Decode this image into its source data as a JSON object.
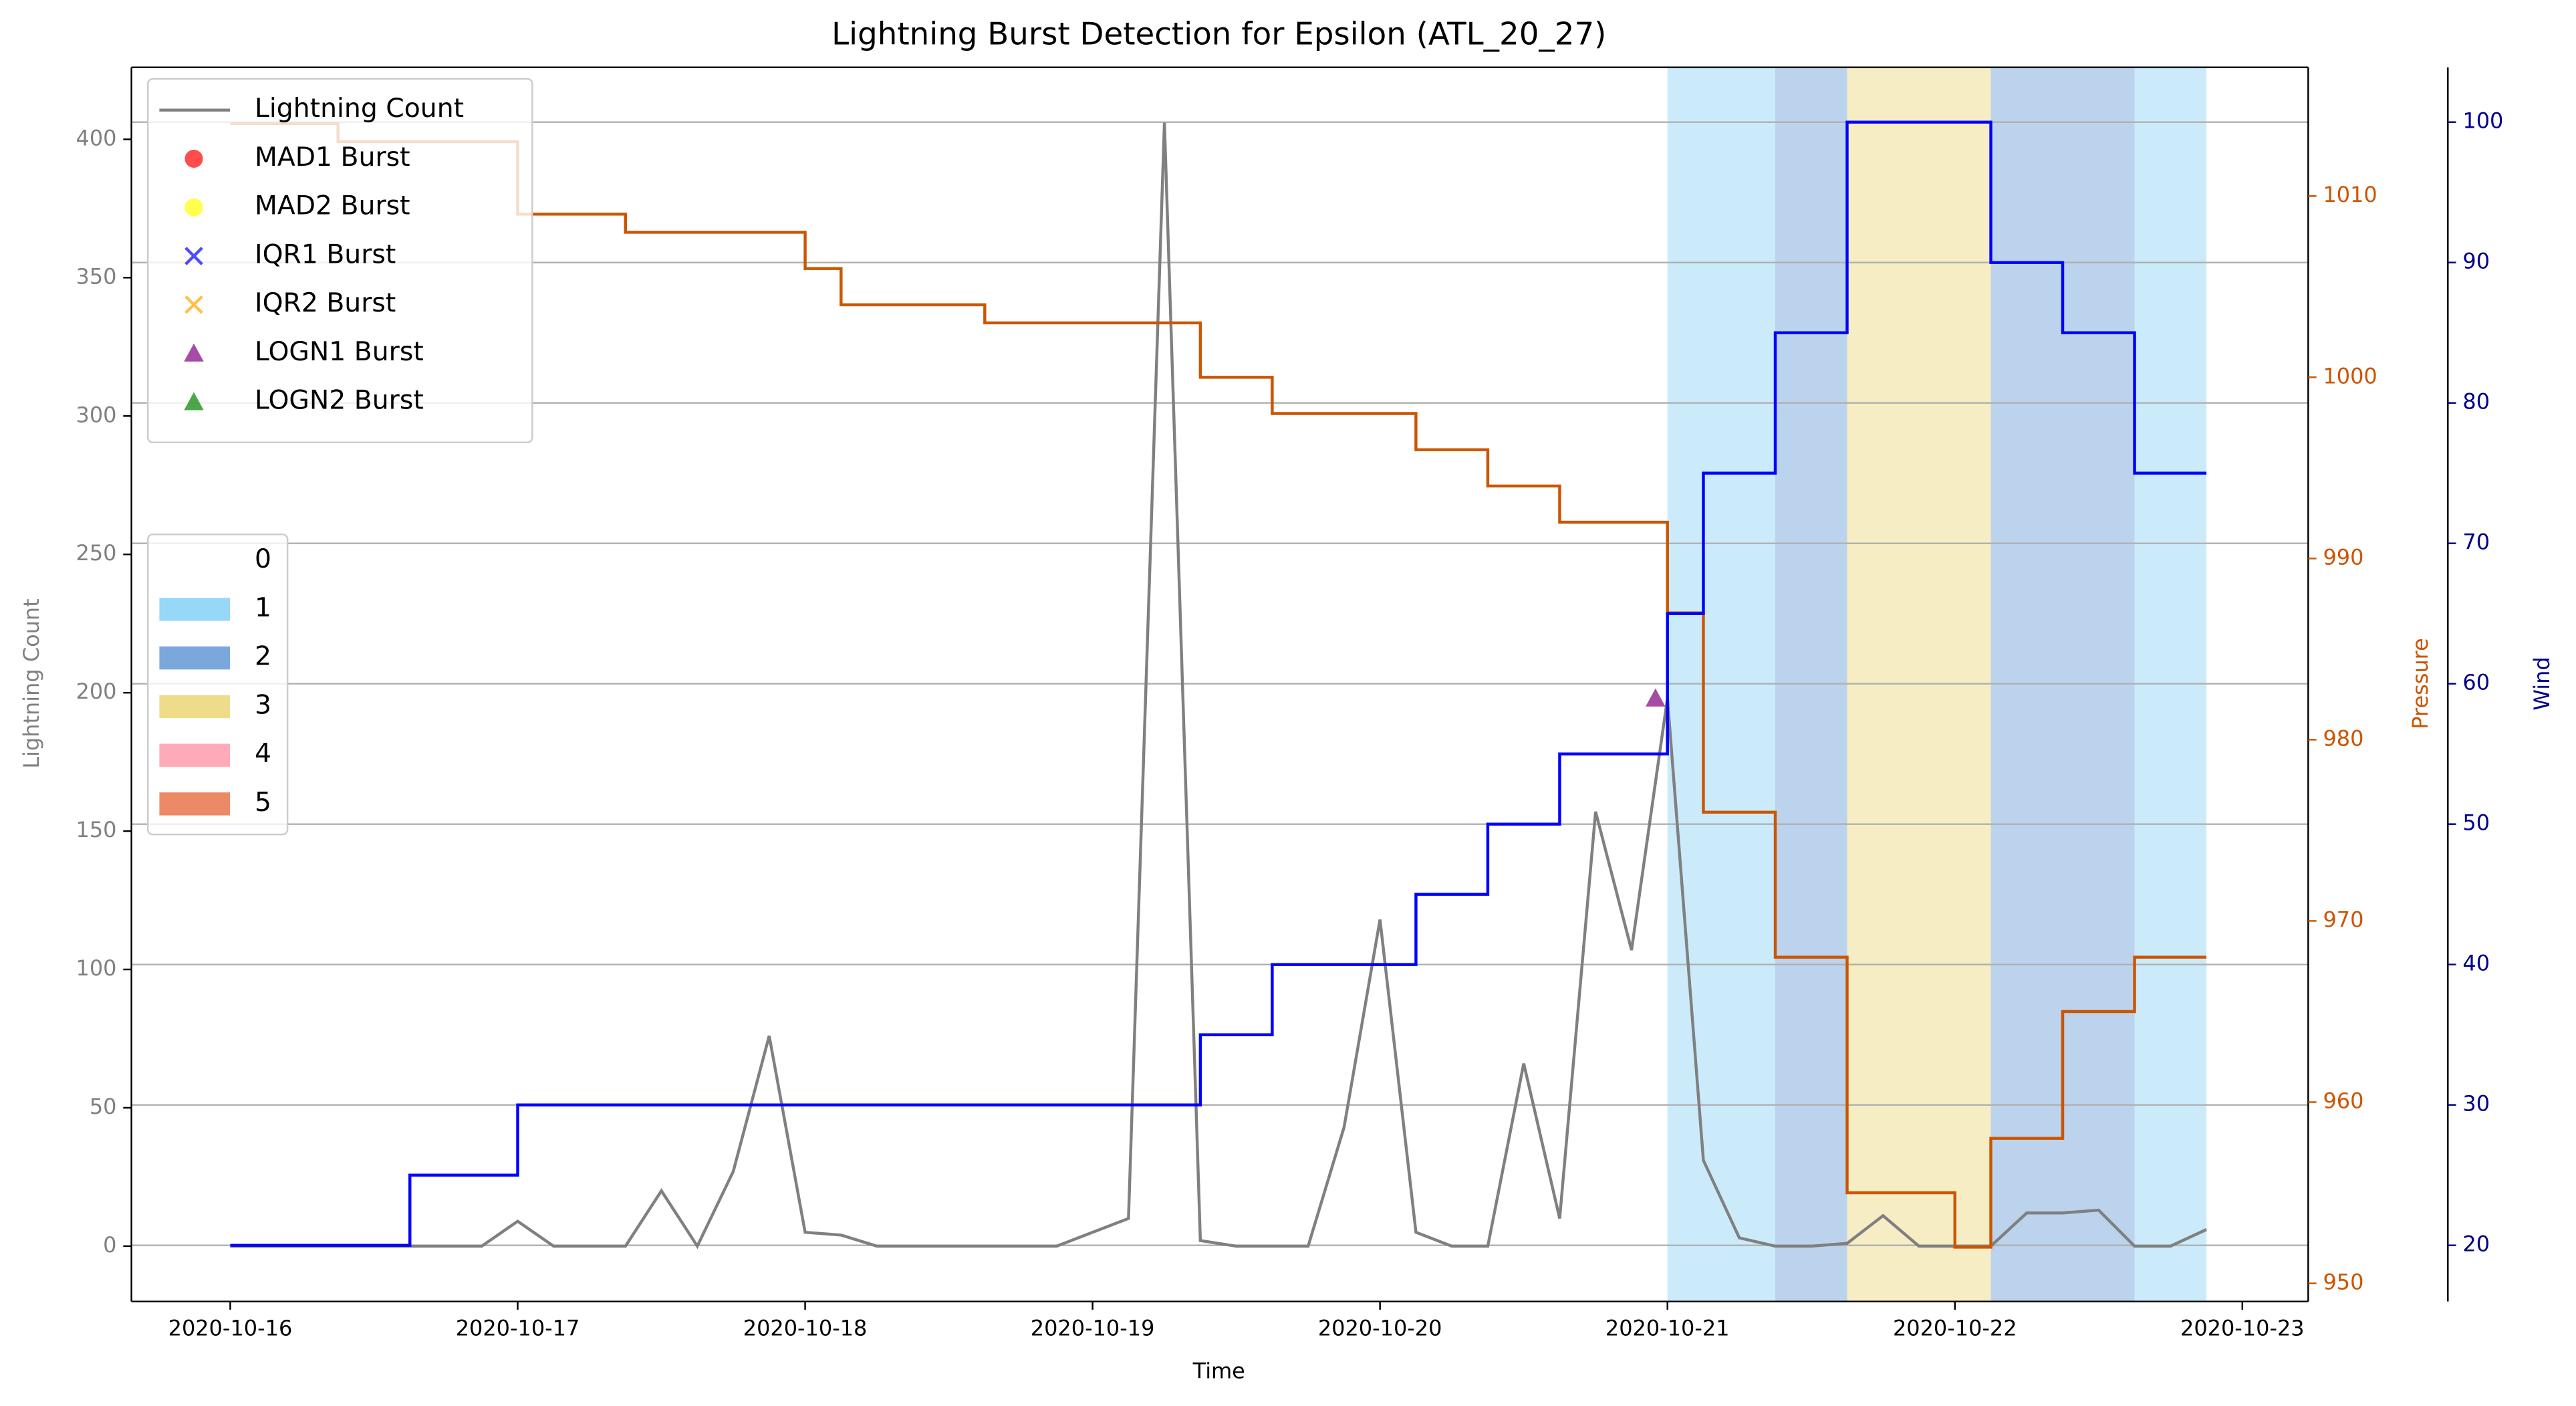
{
  "chart_data": {
    "type": "line",
    "title": "Lightning Burst Detection for Epsilon (ATL_20_27)",
    "xlabel": "Time",
    "ylabel": "Lightning Count",
    "y2label": "Pressure",
    "y3label": "Wind",
    "x": [
      "2020-10-16 00:00",
      "2020-10-16 03:00",
      "2020-10-16 06:00",
      "2020-10-16 09:00",
      "2020-10-16 12:00",
      "2020-10-16 15:00",
      "2020-10-16 18:00",
      "2020-10-16 21:00",
      "2020-10-17 00:00",
      "2020-10-17 03:00",
      "2020-10-17 06:00",
      "2020-10-17 09:00",
      "2020-10-17 12:00",
      "2020-10-17 15:00",
      "2020-10-17 18:00",
      "2020-10-17 21:00",
      "2020-10-18 00:00",
      "2020-10-18 03:00",
      "2020-10-18 06:00",
      "2020-10-18 09:00",
      "2020-10-18 12:00",
      "2020-10-18 15:00",
      "2020-10-18 18:00",
      "2020-10-18 21:00",
      "2020-10-19 00:00",
      "2020-10-19 03:00",
      "2020-10-19 06:00",
      "2020-10-19 09:00",
      "2020-10-19 12:00",
      "2020-10-19 15:00",
      "2020-10-19 18:00",
      "2020-10-19 21:00",
      "2020-10-20 00:00",
      "2020-10-20 03:00",
      "2020-10-20 06:00",
      "2020-10-20 09:00",
      "2020-10-20 12:00",
      "2020-10-20 15:00",
      "2020-10-20 18:00",
      "2020-10-20 21:00",
      "2020-10-21 00:00",
      "2020-10-21 03:00",
      "2020-10-21 06:00",
      "2020-10-21 09:00",
      "2020-10-21 12:00",
      "2020-10-21 15:00",
      "2020-10-21 18:00",
      "2020-10-21 21:00",
      "2020-10-22 00:00",
      "2020-10-22 03:00",
      "2020-10-22 06:00",
      "2020-10-22 09:00",
      "2020-10-22 12:00",
      "2020-10-22 15:00",
      "2020-10-22 18:00",
      "2020-10-22 21:00"
    ],
    "xlim": [
      "2020-10-15 15:45",
      "2020-10-23 05:30"
    ],
    "xticks": [
      "2020-10-16",
      "2020-10-17",
      "2020-10-18",
      "2020-10-19",
      "2020-10-20",
      "2020-10-21",
      "2020-10-22",
      "2020-10-23"
    ],
    "ylim": [
      -20,
      426
    ],
    "yticks": [
      0,
      50,
      100,
      150,
      200,
      250,
      300,
      350,
      400
    ],
    "y2lim": [
      949,
      1017.1
    ],
    "y2ticks": [
      950,
      960,
      970,
      980,
      990,
      1000,
      1010
    ],
    "y3lim": [
      16,
      103.9
    ],
    "y3ticks": [
      20,
      30,
      40,
      50,
      60,
      70,
      80,
      90,
      100
    ],
    "grid_axis": "y3",
    "legend_loc": "upper left",
    "series": [
      {
        "name": "Lightning Count",
        "color": "#808080",
        "axis": "y",
        "in_legend": true,
        "step": false,
        "values": [
          0,
          0,
          0,
          0,
          0,
          0,
          0,
          0,
          9,
          0,
          0,
          0,
          20,
          0,
          27,
          76,
          5,
          4,
          0,
          0,
          0,
          0,
          0,
          0,
          5,
          10,
          406,
          2,
          0,
          0,
          0,
          43,
          118,
          5,
          0,
          0,
          66,
          10,
          157,
          107,
          198,
          31,
          3,
          0,
          0,
          1,
          11,
          0,
          0,
          0,
          12,
          12,
          13,
          0,
          0,
          6
        ]
      },
      {
        "name": "Pressure",
        "color": "#cc5500",
        "axis": "y2",
        "in_legend": false,
        "step": true,
        "values": [
          1014,
          1014,
          1014,
          1013,
          1013,
          1013,
          1013,
          1013,
          1009,
          1009,
          1009,
          1008,
          1008,
          1008,
          1008,
          1008,
          1006,
          1004,
          1004,
          1004,
          1004,
          1003,
          1003,
          1003,
          1003,
          1003,
          1003,
          1000,
          1000,
          998,
          998,
          998,
          998,
          996,
          996,
          994,
          994,
          992,
          992,
          992,
          987,
          976,
          976,
          968,
          968,
          955,
          955,
          955,
          952,
          958,
          958,
          965,
          965,
          968,
          968,
          968
        ]
      },
      {
        "name": "Wind",
        "color": "#0000ff",
        "axis": "y3",
        "in_legend": false,
        "step": true,
        "values": [
          20,
          20,
          20,
          20,
          20,
          25,
          25,
          25,
          30,
          30,
          30,
          30,
          30,
          30,
          30,
          30,
          30,
          30,
          30,
          30,
          30,
          30,
          30,
          30,
          30,
          30,
          30,
          35,
          35,
          40,
          40,
          40,
          40,
          45,
          45,
          50,
          50,
          55,
          55,
          55,
          65,
          75,
          75,
          85,
          85,
          100,
          100,
          100,
          100,
          90,
          90,
          85,
          85,
          75,
          75,
          75
        ]
      }
    ],
    "markers": [
      {
        "name": "MAD1 Burst",
        "color": "#ff0000",
        "marker": "circle",
        "x": [],
        "values": []
      },
      {
        "name": "MAD2 Burst",
        "color": "#ffff00",
        "marker": "circle",
        "x": [],
        "values": []
      },
      {
        "name": "IQR1 Burst",
        "color": "#0000ff",
        "marker": "x",
        "x": [],
        "values": []
      },
      {
        "name": "IQR2 Burst",
        "color": "#ffa500",
        "marker": "x",
        "x": [],
        "values": []
      },
      {
        "name": "LOGN1 Burst",
        "color": "#800080",
        "marker": "triangle",
        "x": [
          "2020-10-20 23:00"
        ],
        "values": [
          198
        ]
      },
      {
        "name": "LOGN2 Burst",
        "color": "#008000",
        "marker": "triangle",
        "x": [],
        "values": []
      }
    ],
    "shading": {
      "legend_loc": "center left",
      "labels": [
        "0",
        "1",
        "2",
        "3",
        "4",
        "5"
      ],
      "colors": [
        "#ffffff",
        "#97d7f8",
        "#7aa7dc",
        "#eedc8a",
        "#ffaab8",
        "#ec8a68"
      ],
      "spans": [
        {
          "x0": "2020-10-21 00:00",
          "x1": "2020-10-21 09:00",
          "category": 1
        },
        {
          "x0": "2020-10-21 09:00",
          "x1": "2020-10-21 15:00",
          "category": 2
        },
        {
          "x0": "2020-10-21 15:00",
          "x1": "2020-10-22 03:00",
          "category": 3
        },
        {
          "x0": "2020-10-22 03:00",
          "x1": "2020-10-22 15:00",
          "category": 2
        },
        {
          "x0": "2020-10-22 15:00",
          "x1": "2020-10-22 21:00",
          "category": 1
        }
      ]
    }
  }
}
